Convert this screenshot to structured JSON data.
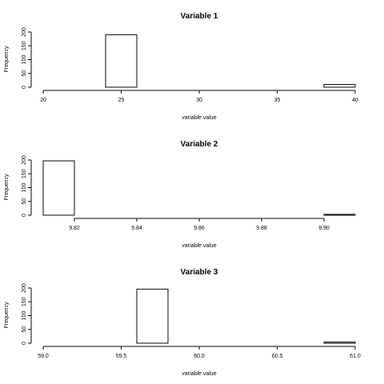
{
  "chart_data": [
    {
      "type": "bar",
      "title": "Variable 1",
      "xlabel": "variable value",
      "ylabel": "Frequency",
      "xlim": [
        20,
        40
      ],
      "ylim": [
        0,
        200
      ],
      "xticks": [
        20,
        25,
        30,
        35,
        40
      ],
      "xtick_labels": [
        "20",
        "25",
        "30",
        "35",
        "40"
      ],
      "yticks": [
        0,
        50,
        100,
        150,
        200
      ],
      "ytick_labels": [
        "0",
        "50",
        "100",
        "150",
        "200"
      ],
      "bins": [
        {
          "x0": 20,
          "x1": 22,
          "value": 0
        },
        {
          "x0": 22,
          "x1": 24,
          "value": 0
        },
        {
          "x0": 24,
          "x1": 26,
          "value": 190
        },
        {
          "x0": 26,
          "x1": 28,
          "value": 0
        },
        {
          "x0": 28,
          "x1": 30,
          "value": 0
        },
        {
          "x0": 30,
          "x1": 32,
          "value": 0
        },
        {
          "x0": 32,
          "x1": 34,
          "value": 0
        },
        {
          "x0": 34,
          "x1": 36,
          "value": 0
        },
        {
          "x0": 36,
          "x1": 38,
          "value": 0
        },
        {
          "x0": 38,
          "x1": 40,
          "value": 10
        }
      ]
    },
    {
      "type": "bar",
      "title": "Variable 2",
      "xlabel": "variable value",
      "ylabel": "Frequency",
      "xlim": [
        9.81,
        9.91
      ],
      "ylim": [
        0,
        200
      ],
      "xticks": [
        9.82,
        9.84,
        9.86,
        9.88,
        9.9
      ],
      "xtick_labels": [
        "9.82",
        "9.84",
        "9.86",
        "9.88",
        "9.90"
      ],
      "yticks": [
        0,
        50,
        100,
        150,
        200
      ],
      "ytick_labels": [
        "0",
        "50",
        "100",
        "150",
        "200"
      ],
      "bins": [
        {
          "x0": 9.81,
          "x1": 9.82,
          "value": 197
        },
        {
          "x0": 9.82,
          "x1": 9.83,
          "value": 0
        },
        {
          "x0": 9.83,
          "x1": 9.84,
          "value": 0
        },
        {
          "x0": 9.84,
          "x1": 9.85,
          "value": 0
        },
        {
          "x0": 9.85,
          "x1": 9.86,
          "value": 0
        },
        {
          "x0": 9.86,
          "x1": 9.87,
          "value": 0
        },
        {
          "x0": 9.87,
          "x1": 9.88,
          "value": 0
        },
        {
          "x0": 9.88,
          "x1": 9.89,
          "value": 0
        },
        {
          "x0": 9.89,
          "x1": 9.9,
          "value": 0
        },
        {
          "x0": 9.9,
          "x1": 9.91,
          "value": 3
        }
      ]
    },
    {
      "type": "bar",
      "title": "Variable 3",
      "xlabel": "variable value",
      "ylabel": "Frequency",
      "xlim": [
        59.0,
        61.0
      ],
      "ylim": [
        0,
        200
      ],
      "xticks": [
        59.0,
        59.5,
        60.0,
        60.5,
        61.0
      ],
      "xtick_labels": [
        "59.0",
        "59.5",
        "60.0",
        "60.5",
        "61.0"
      ],
      "yticks": [
        0,
        50,
        100,
        150,
        200
      ],
      "ytick_labels": [
        "0",
        "50",
        "100",
        "150",
        "200"
      ],
      "bins": [
        {
          "x0": 59.0,
          "x1": 59.2,
          "value": 0
        },
        {
          "x0": 59.2,
          "x1": 59.4,
          "value": 0
        },
        {
          "x0": 59.4,
          "x1": 59.6,
          "value": 0
        },
        {
          "x0": 59.6,
          "x1": 59.8,
          "value": 196
        },
        {
          "x0": 59.8,
          "x1": 60.0,
          "value": 0
        },
        {
          "x0": 60.0,
          "x1": 60.2,
          "value": 0
        },
        {
          "x0": 60.2,
          "x1": 60.4,
          "value": 0
        },
        {
          "x0": 60.4,
          "x1": 60.6,
          "value": 0
        },
        {
          "x0": 60.6,
          "x1": 60.8,
          "value": 0
        },
        {
          "x0": 60.8,
          "x1": 61.0,
          "value": 4
        }
      ]
    }
  ]
}
